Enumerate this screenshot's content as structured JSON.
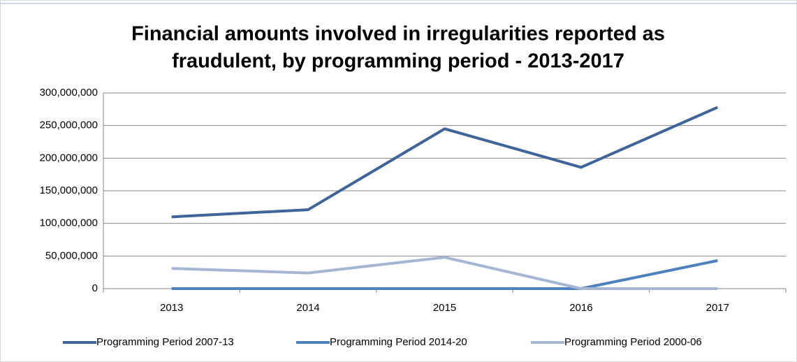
{
  "chart_data": {
    "type": "line",
    "title": [
      "Financial amounts involved in irregularities reported as",
      "fraudulent, by programming period - 2013-2017"
    ],
    "categories": [
      "2013",
      "2014",
      "2015",
      "2016",
      "2017"
    ],
    "series": [
      {
        "name": "Programming Period 2007-13",
        "color": "#3f6497",
        "values": [
          110000000,
          121000000,
          245000000,
          186000000,
          278000000
        ]
      },
      {
        "name": "Programming Period 2014-20",
        "color": "#4f81bd",
        "values": [
          0,
          0,
          0,
          0,
          43000000
        ]
      },
      {
        "name": "Programming Period 2000-06",
        "color": "#a5b6d3",
        "values": [
          31000000,
          24000000,
          48000000,
          0,
          0
        ]
      }
    ],
    "ylim": [
      0,
      300000000
    ],
    "yticks": [
      0,
      {
        "value": 50000000,
        "label": "50,000,000"
      },
      {
        "value": 100000000,
        "label": "100,000,000"
      },
      {
        "value": 150000000,
        "label": "150,000,000"
      },
      {
        "value": 200000000,
        "label": "200,000,000"
      },
      {
        "value": 250000000,
        "label": "250,000,000"
      },
      {
        "value": 300000000,
        "label": "300,000,000"
      }
    ],
    "grid": true,
    "legend": "bottom"
  }
}
